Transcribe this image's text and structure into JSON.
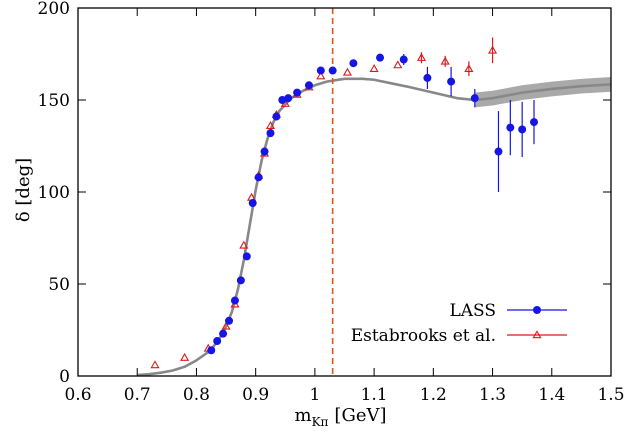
{
  "chart_data": {
    "type": "scatter",
    "title": "",
    "xlabel": "m_Kπ [GeV]",
    "xlabel_main": "m",
    "xlabel_sub": "Kπ",
    "xlabel_unit": "[GeV]",
    "ylabel": "δ [deg]",
    "xlim": [
      0.6,
      1.5
    ],
    "ylim": [
      0,
      200
    ],
    "x_ticks": [
      "0.6",
      "0.7",
      "0.8",
      "0.9",
      "1",
      "1.1",
      "1.2",
      "1.3",
      "1.4",
      "1.5"
    ],
    "y_ticks": [
      "0",
      "50",
      "100",
      "150",
      "200"
    ],
    "grid": false,
    "legend_position": "bottom-right",
    "vertical_line": {
      "x": 1.03,
      "color": "#e0531a",
      "style": "dashed"
    },
    "series": [
      {
        "name": "LASS",
        "color": "#1515e6",
        "marker": "circle",
        "points": [
          {
            "x": 0.825,
            "y": 14,
            "err": 1
          },
          {
            "x": 0.835,
            "y": 19,
            "err": 1
          },
          {
            "x": 0.845,
            "y": 23,
            "err": 1
          },
          {
            "x": 0.855,
            "y": 30,
            "err": 1
          },
          {
            "x": 0.865,
            "y": 41,
            "err": 1.5
          },
          {
            "x": 0.875,
            "y": 52,
            "err": 1.5
          },
          {
            "x": 0.885,
            "y": 65,
            "err": 1.5
          },
          {
            "x": 0.895,
            "y": 94,
            "err": 2
          },
          {
            "x": 0.905,
            "y": 108,
            "err": 2
          },
          {
            "x": 0.915,
            "y": 122,
            "err": 2
          },
          {
            "x": 0.925,
            "y": 132,
            "err": 2
          },
          {
            "x": 0.935,
            "y": 141,
            "err": 2
          },
          {
            "x": 0.945,
            "y": 150,
            "err": 2
          },
          {
            "x": 0.955,
            "y": 151,
            "err": 2
          },
          {
            "x": 0.97,
            "y": 154,
            "err": 2
          },
          {
            "x": 0.99,
            "y": 158,
            "err": 2
          },
          {
            "x": 1.01,
            "y": 166,
            "err": 2
          },
          {
            "x": 1.03,
            "y": 166,
            "err": 2
          },
          {
            "x": 1.065,
            "y": 170,
            "err": 2
          },
          {
            "x": 1.11,
            "y": 173,
            "err": 2
          },
          {
            "x": 1.15,
            "y": 172,
            "err": 3
          },
          {
            "x": 1.19,
            "y": 162,
            "err": 6
          },
          {
            "x": 1.23,
            "y": 160,
            "err": 8
          },
          {
            "x": 1.27,
            "y": 151,
            "err": 5
          },
          {
            "x": 1.31,
            "y": 122,
            "err": 22
          },
          {
            "x": 1.33,
            "y": 135,
            "err": 15
          },
          {
            "x": 1.35,
            "y": 134,
            "err": 15
          },
          {
            "x": 1.37,
            "y": 138,
            "err": 12
          }
        ]
      },
      {
        "name": "Estabrooks et al.",
        "color": "#e01818",
        "marker": "triangle",
        "points": [
          {
            "x": 0.73,
            "y": 6,
            "err": 1
          },
          {
            "x": 0.78,
            "y": 10,
            "err": 1
          },
          {
            "x": 0.82,
            "y": 15,
            "err": 1
          },
          {
            "x": 0.85,
            "y": 27,
            "err": 1
          },
          {
            "x": 0.865,
            "y": 39,
            "err": 1
          },
          {
            "x": 0.88,
            "y": 71,
            "err": 2
          },
          {
            "x": 0.893,
            "y": 97,
            "err": 2
          },
          {
            "x": 0.905,
            "y": 109,
            "err": 2
          },
          {
            "x": 0.915,
            "y": 121,
            "err": 2
          },
          {
            "x": 0.925,
            "y": 136,
            "err": 2
          },
          {
            "x": 0.935,
            "y": 142,
            "err": 2
          },
          {
            "x": 0.95,
            "y": 148,
            "err": 2
          },
          {
            "x": 0.97,
            "y": 153,
            "err": 2
          },
          {
            "x": 0.99,
            "y": 157,
            "err": 2
          },
          {
            "x": 1.01,
            "y": 163,
            "err": 2
          },
          {
            "x": 1.055,
            "y": 165,
            "err": 2
          },
          {
            "x": 1.1,
            "y": 167,
            "err": 2
          },
          {
            "x": 1.14,
            "y": 169,
            "err": 2
          },
          {
            "x": 1.18,
            "y": 173,
            "err": 3
          },
          {
            "x": 1.22,
            "y": 171,
            "err": 3
          },
          {
            "x": 1.26,
            "y": 167,
            "err": 4
          },
          {
            "x": 1.3,
            "y": 177,
            "err": 7
          }
        ]
      }
    ],
    "model_curve": {
      "color": "#888888",
      "points": [
        [
          0.7,
          0.5
        ],
        [
          0.72,
          1
        ],
        [
          0.74,
          1.8
        ],
        [
          0.76,
          3
        ],
        [
          0.78,
          5
        ],
        [
          0.8,
          8.5
        ],
        [
          0.82,
          13
        ],
        [
          0.83,
          16.5
        ],
        [
          0.84,
          21
        ],
        [
          0.85,
          27
        ],
        [
          0.86,
          35
        ],
        [
          0.87,
          47
        ],
        [
          0.88,
          63
        ],
        [
          0.89,
          82
        ],
        [
          0.9,
          101
        ],
        [
          0.91,
          117
        ],
        [
          0.92,
          129
        ],
        [
          0.93,
          138
        ],
        [
          0.94,
          144
        ],
        [
          0.96,
          151
        ],
        [
          0.98,
          155
        ],
        [
          1.0,
          158
        ],
        [
          1.02,
          160
        ],
        [
          1.05,
          161.5
        ],
        [
          1.08,
          161.5
        ],
        [
          1.1,
          161
        ],
        [
          1.13,
          159
        ],
        [
          1.16,
          157
        ],
        [
          1.2,
          154
        ],
        [
          1.24,
          151
        ],
        [
          1.27,
          150
        ],
        [
          1.3,
          151
        ],
        [
          1.35,
          154
        ],
        [
          1.4,
          156
        ],
        [
          1.45,
          157.5
        ],
        [
          1.5,
          158.5
        ]
      ],
      "band_start": 1.27,
      "band_halfwidth": 4
    }
  }
}
